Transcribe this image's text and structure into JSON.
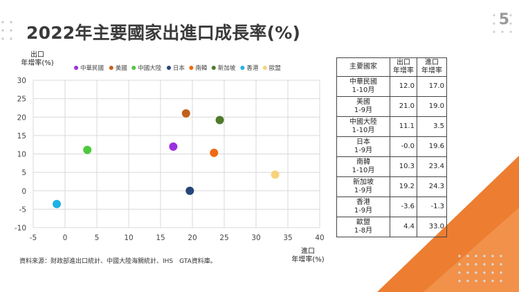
{
  "slide": {
    "title": "2022年主要國家出進口成長率(%)",
    "page_number": "5",
    "source": "資料來源：財政部進出口統計、中國大陸海關統計、IHS　GTA資料庫。"
  },
  "colors": {
    "accent_orange": "#ed7d31",
    "accent_orange_light": "#f4a35e"
  },
  "chart_data": {
    "type": "scatter",
    "title": "",
    "xlabel": "進口\n年增率(%)",
    "ylabel": "出口\n年增率(%)",
    "xlim": [
      -5,
      40
    ],
    "ylim": [
      -10,
      30
    ],
    "xticks": [
      -5,
      0,
      5,
      10,
      15,
      20,
      25,
      30,
      35,
      40
    ],
    "yticks": [
      -10,
      -5,
      0,
      5,
      10,
      15,
      20,
      25,
      30
    ],
    "grid": true,
    "legend_position": "top",
    "series": [
      {
        "name": "中華民國",
        "color": "#9b30e0",
        "x": 17.0,
        "y": 12.0
      },
      {
        "name": "美國",
        "color": "#c0601c",
        "x": 19.0,
        "y": 21.0
      },
      {
        "name": "中國大陸",
        "color": "#4cc93c",
        "x": 3.5,
        "y": 11.1
      },
      {
        "name": "日本",
        "color": "#26457a",
        "x": 19.6,
        "y": -0.0
      },
      {
        "name": "南韓",
        "color": "#ee6a12",
        "x": 23.4,
        "y": 10.3
      },
      {
        "name": "新加坡",
        "color": "#4f7a2c",
        "x": 24.3,
        "y": 19.2
      },
      {
        "name": "香港",
        "color": "#1fb2e4",
        "x": -1.3,
        "y": -3.6
      },
      {
        "name": "歐盟",
        "color": "#f6d37a",
        "x": 33.0,
        "y": 4.4
      }
    ]
  },
  "table": {
    "headers": [
      "主要國家",
      "出口\n年增率",
      "進口\n年增率"
    ],
    "rows": [
      {
        "country": "中華民國",
        "period": "1-10月",
        "export": "12.0",
        "import": "17.0"
      },
      {
        "country": "美國",
        "period": "1-9月",
        "export": "21.0",
        "import": "19.0"
      },
      {
        "country": "中國大陸",
        "period": "1-10月",
        "export": "11.1",
        "import": "3.5"
      },
      {
        "country": "日本",
        "period": "1-9月",
        "export": "-0.0",
        "import": "19.6"
      },
      {
        "country": "南韓",
        "period": "1-10月",
        "export": "10.3",
        "import": "23.4"
      },
      {
        "country": "新加坡",
        "period": "1-9月",
        "export": "19.2",
        "import": "24.3"
      },
      {
        "country": "香港",
        "period": "1-9月",
        "export": "-3.6",
        "import": "-1.3"
      },
      {
        "country": "歐盟",
        "period": "1-8月",
        "export": "4.4",
        "import": "33.0"
      }
    ]
  }
}
